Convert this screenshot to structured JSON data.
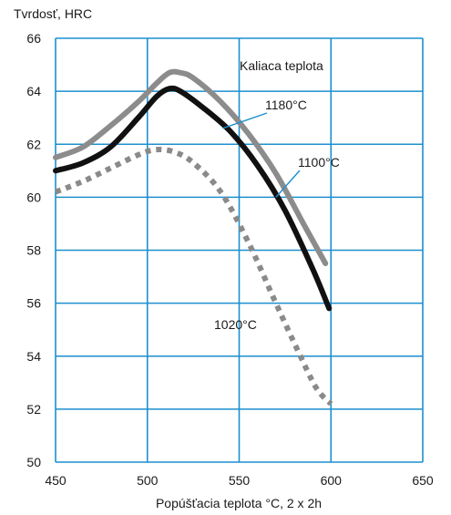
{
  "chart_data": {
    "type": "line",
    "ylabel": "Tvrdosť, HRC",
    "xlabel": "Popúšťacia teplota °C, 2 x 2h",
    "xlim": [
      450,
      650
    ],
    "ylim": [
      50,
      66
    ],
    "x_ticks": [
      450,
      500,
      550,
      600,
      650
    ],
    "y_ticks": [
      50,
      52,
      54,
      56,
      58,
      60,
      62,
      64,
      66
    ],
    "grid": true,
    "colors": {
      "grid": "#1c8fcf",
      "series_1180": "#8c8c8c",
      "series_1100": "#111111",
      "series_1020": "#8a8a8a",
      "leader": "#1c8fcf"
    },
    "legend_title": "Kaliaca teplota",
    "series": [
      {
        "name": "1180°C",
        "style": "solid",
        "x": [
          450,
          465,
          480,
          495,
          505,
          512,
          518,
          525,
          540,
          555,
          570,
          585,
          597
        ],
        "y": [
          61.5,
          61.9,
          62.7,
          63.6,
          64.3,
          64.7,
          64.7,
          64.5,
          63.6,
          62.4,
          60.9,
          59.0,
          57.5
        ]
      },
      {
        "name": "1100°C",
        "style": "solid",
        "x": [
          450,
          465,
          480,
          495,
          505,
          512,
          518,
          530,
          545,
          560,
          575,
          590,
          599
        ],
        "y": [
          61.0,
          61.3,
          61.9,
          63.0,
          63.8,
          64.1,
          64.0,
          63.4,
          62.5,
          61.2,
          59.5,
          57.3,
          55.8
        ]
      },
      {
        "name": "1020°C",
        "style": "dotted",
        "x": [
          450,
          465,
          480,
          495,
          505,
          515,
          525,
          540,
          555,
          570,
          582,
          592,
          600
        ],
        "y": [
          60.2,
          60.6,
          61.1,
          61.6,
          61.8,
          61.7,
          61.3,
          60.2,
          58.3,
          56.0,
          54.2,
          52.8,
          52.2
        ]
      }
    ],
    "annotations": [
      {
        "text": "1180°C",
        "target_x": 541,
        "target_y": 62.6
      },
      {
        "text": "1100°C",
        "target_x": 570,
        "target_y": 60.0
      },
      {
        "text": "1020°C",
        "target_x": null,
        "target_y": null
      }
    ]
  }
}
